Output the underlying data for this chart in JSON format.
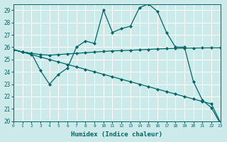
{
  "xlabel": "Humidex (Indice chaleur)",
  "bg_color": "#cceaea",
  "grid_color": "#ffffff",
  "line_color": "#006666",
  "xlim": [
    0,
    23
  ],
  "ylim": [
    20,
    29.5
  ],
  "yticks": [
    20,
    21,
    22,
    23,
    24,
    25,
    26,
    27,
    28,
    29
  ],
  "xticks": [
    0,
    1,
    2,
    3,
    4,
    5,
    6,
    7,
    8,
    9,
    10,
    11,
    12,
    13,
    14,
    15,
    16,
    17,
    18,
    19,
    20,
    21,
    22,
    23
  ],
  "series": [
    [
      25.8,
      25.6,
      25.5,
      24.1,
      23.0,
      23.8,
      24.3,
      26.0,
      26.5,
      26.3,
      29.0,
      27.2,
      27.5,
      27.7,
      29.2,
      29.5,
      28.9,
      27.2,
      26.0,
      26.0,
      23.2,
      21.7,
      21.1,
      19.8
    ],
    [
      25.8,
      25.6,
      25.5,
      25.4,
      25.35,
      25.4,
      25.45,
      25.5,
      25.55,
      25.6,
      25.65,
      25.7,
      25.72,
      25.75,
      25.78,
      25.82,
      25.85,
      25.88,
      25.9,
      25.92,
      25.93,
      25.94,
      25.95,
      25.95
    ],
    [
      25.8,
      25.6,
      25.4,
      25.2,
      25.0,
      24.8,
      24.6,
      24.4,
      24.2,
      24.0,
      23.8,
      23.6,
      23.4,
      23.2,
      23.0,
      22.8,
      22.6,
      22.4,
      22.2,
      22.0,
      21.8,
      21.6,
      21.4,
      19.9
    ]
  ]
}
